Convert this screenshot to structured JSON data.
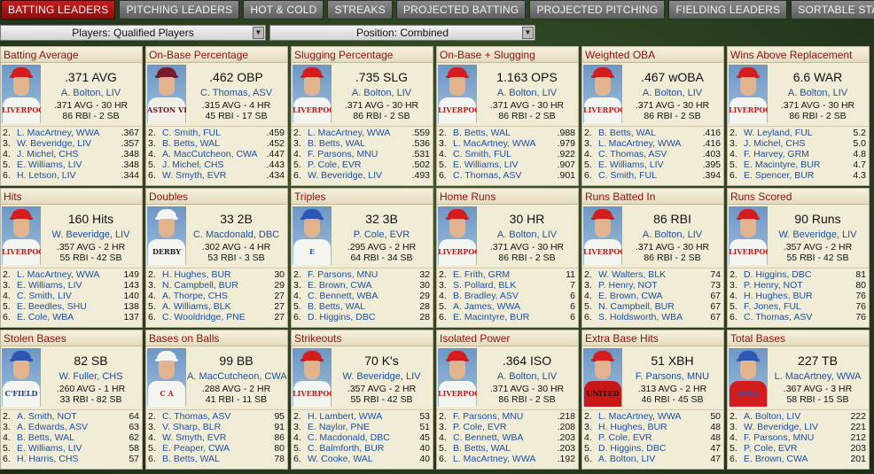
{
  "tabs": [
    {
      "label": "BATTING LEADERS",
      "active": true
    },
    {
      "label": "PITCHING LEADERS",
      "active": false
    },
    {
      "label": "HOT & COLD",
      "active": false
    },
    {
      "label": "STREAKS",
      "active": false
    },
    {
      "label": "PROJECTED BATTING",
      "active": false
    },
    {
      "label": "PROJECTED PITCHING",
      "active": false
    },
    {
      "label": "FIELDING LEADERS",
      "active": false
    },
    {
      "label": "SORTABLE STATS",
      "active": false
    }
  ],
  "filters": {
    "players": "Players: Qualified Players",
    "position": "Position: Combined",
    "dropdown_icon": "chevron-down-icon"
  },
  "colors": {
    "active_tab": "#b01515",
    "panel_bg": "#f1ecd6",
    "title_text": "#8b1010",
    "name_text": "#1f4f9a"
  },
  "panels": [
    {
      "title": "Batting Average",
      "leader": {
        "value": ".371 AVG",
        "name": "A. Bolton, LIV",
        "line1": ".371 AVG - 30 HR",
        "line2": "86 RBI - 2 SB",
        "team": "liverpool"
      },
      "ranks": [
        {
          "n": "2.",
          "name": "L. MacArtney, WWA",
          "val": ".367"
        },
        {
          "n": "3.",
          "name": "W. Beveridge, LIV",
          "val": ".357"
        },
        {
          "n": "4.",
          "name": "J. Michel, CHS",
          "val": ".348"
        },
        {
          "n": "5.",
          "name": "E. Williams, LIV",
          "val": ".348"
        },
        {
          "n": "6.",
          "name": "H. Letson, LIV",
          "val": ".344"
        }
      ]
    },
    {
      "title": "On-Base Percentage",
      "leader": {
        "value": ".462 OBP",
        "name": "C. Thomas, ASV",
        "line1": ".315 AVG - 4 HR",
        "line2": "45 RBI - 17 SB",
        "team": "astonvilla"
      },
      "ranks": [
        {
          "n": "2.",
          "name": "C. Smith, FUL",
          "val": ".459"
        },
        {
          "n": "3.",
          "name": "B. Betts, WAL",
          "val": ".452"
        },
        {
          "n": "4.",
          "name": "A. MacCutcheon, CWA",
          "val": ".447"
        },
        {
          "n": "5.",
          "name": "J. Michel, CHS",
          "val": ".443"
        },
        {
          "n": "6.",
          "name": "W. Smyth, EVR",
          "val": ".434"
        }
      ]
    },
    {
      "title": "Slugging Percentage",
      "leader": {
        "value": ".735 SLG",
        "name": "A. Bolton, LIV",
        "line1": ".371 AVG - 30 HR",
        "line2": "86 RBI - 2 SB",
        "team": "liverpool"
      },
      "ranks": [
        {
          "n": "2.",
          "name": "L. MacArtney, WWA",
          "val": ".559"
        },
        {
          "n": "3.",
          "name": "B. Betts, WAL",
          "val": ".536"
        },
        {
          "n": "4.",
          "name": "F. Parsons, MNU",
          "val": ".531"
        },
        {
          "n": "5.",
          "name": "P. Cole, EVR",
          "val": ".502"
        },
        {
          "n": "6.",
          "name": "W. Beveridge, LIV",
          "val": ".493"
        }
      ]
    },
    {
      "title": "On-Base + Slugging",
      "leader": {
        "value": "1.163 OPS",
        "name": "A. Bolton, LIV",
        "line1": ".371 AVG - 30 HR",
        "line2": "86 RBI - 2 SB",
        "team": "liverpool"
      },
      "ranks": [
        {
          "n": "2.",
          "name": "B. Betts, WAL",
          "val": ".988"
        },
        {
          "n": "3.",
          "name": "L. MacArtney, WWA",
          "val": ".979"
        },
        {
          "n": "4.",
          "name": "C. Smith, FUL",
          "val": ".922"
        },
        {
          "n": "5.",
          "name": "E. Williams, LIV",
          "val": ".907"
        },
        {
          "n": "6.",
          "name": "C. Thomas, ASV",
          "val": ".901"
        }
      ]
    },
    {
      "title": "Weighted OBA",
      "leader": {
        "value": ".467 wOBA",
        "name": "A. Bolton, LIV",
        "line1": ".371 AVG - 30 HR",
        "line2": "86 RBI - 2 SB",
        "team": "liverpool"
      },
      "ranks": [
        {
          "n": "2.",
          "name": "B. Betts, WAL",
          "val": ".416"
        },
        {
          "n": "3.",
          "name": "L. MacArtney, WWA",
          "val": ".416"
        },
        {
          "n": "4.",
          "name": "C. Thomas, ASV",
          "val": ".403"
        },
        {
          "n": "5.",
          "name": "E. Williams, LIV",
          "val": ".395"
        },
        {
          "n": "6.",
          "name": "C. Smith, FUL",
          "val": ".394"
        }
      ]
    },
    {
      "title": "Wins Above Replacement",
      "leader": {
        "value": "6.6 WAR",
        "name": "A. Bolton, LIV",
        "line1": ".371 AVG - 30 HR",
        "line2": "86 RBI - 2 SB",
        "team": "liverpool"
      },
      "ranks": [
        {
          "n": "2.",
          "name": "W. Leyland, FUL",
          "val": "5.2"
        },
        {
          "n": "3.",
          "name": "J. Michel, CHS",
          "val": "5.0"
        },
        {
          "n": "4.",
          "name": "F. Harvey, GRM",
          "val": "4.8"
        },
        {
          "n": "5.",
          "name": "E. Macintyre, BUR",
          "val": "4.7"
        },
        {
          "n": "6.",
          "name": "E. Spencer, BUR",
          "val": "4.3"
        }
      ]
    },
    {
      "title": "Hits",
      "leader": {
        "value": "160 Hits",
        "name": "W. Beveridge, LIV",
        "line1": ".357 AVG - 2 HR",
        "line2": "55 RBI - 42 SB",
        "team": "liverpool"
      },
      "ranks": [
        {
          "n": "2.",
          "name": "L. MacArtney, WWA",
          "val": "149"
        },
        {
          "n": "3.",
          "name": "E. Williams, LIV",
          "val": "143"
        },
        {
          "n": "4.",
          "name": "C. Smith, LIV",
          "val": "140"
        },
        {
          "n": "5.",
          "name": "E. Beedles, SHU",
          "val": "138"
        },
        {
          "n": "6.",
          "name": "E. Cole, WBA",
          "val": "137"
        }
      ]
    },
    {
      "title": "Doubles",
      "leader": {
        "value": "33 2B",
        "name": "C. Macdonald, DBC",
        "line1": ".302 AVG - 4 HR",
        "line2": "53 RBI - 3 SB",
        "team": "derby"
      },
      "ranks": [
        {
          "n": "2.",
          "name": "H. Hughes, BUR",
          "val": "30"
        },
        {
          "n": "3.",
          "name": "N. Campbell, BUR",
          "val": "29"
        },
        {
          "n": "4.",
          "name": "A. Thorpe, CHS",
          "val": "27"
        },
        {
          "n": "5.",
          "name": "A. Williams, BLK",
          "val": "27"
        },
        {
          "n": "6.",
          "name": "C. Wooldridge, PNE",
          "val": "27"
        }
      ]
    },
    {
      "title": "Triples",
      "leader": {
        "value": "32 3B",
        "name": "P. Cole, EVR",
        "line1": ".295 AVG - 2 HR",
        "line2": "64 RBI - 34 SB",
        "team": "everton"
      },
      "ranks": [
        {
          "n": "2.",
          "name": "F. Parsons, MNU",
          "val": "32"
        },
        {
          "n": "3.",
          "name": "E. Brown, CWA",
          "val": "30"
        },
        {
          "n": "4.",
          "name": "C. Bennett, WBA",
          "val": "29"
        },
        {
          "n": "5.",
          "name": "B. Betts, WAL",
          "val": "28"
        },
        {
          "n": "6.",
          "name": "D. Higgins, DBC",
          "val": "28"
        }
      ]
    },
    {
      "title": "Home Runs",
      "leader": {
        "value": "30 HR",
        "name": "A. Bolton, LIV",
        "line1": ".371 AVG - 30 HR",
        "line2": "86 RBI - 2 SB",
        "team": "liverpool"
      },
      "ranks": [
        {
          "n": "2.",
          "name": "E. Frith, GRM",
          "val": "11"
        },
        {
          "n": "3.",
          "name": "S. Pollard, BLK",
          "val": "7"
        },
        {
          "n": "4.",
          "name": "B. Bradley, ASV",
          "val": "6"
        },
        {
          "n": "5.",
          "name": "A. James, WWA",
          "val": "6"
        },
        {
          "n": "6.",
          "name": "E. Macintyre, BUR",
          "val": "6"
        }
      ]
    },
    {
      "title": "Runs Batted In",
      "leader": {
        "value": "86 RBI",
        "name": "A. Bolton, LIV",
        "line1": ".371 AVG - 30 HR",
        "line2": "86 RBI - 2 SB",
        "team": "liverpool"
      },
      "ranks": [
        {
          "n": "2.",
          "name": "W. Walters, BLK",
          "val": "74"
        },
        {
          "n": "3.",
          "name": "P. Henry, NOT",
          "val": "73"
        },
        {
          "n": "4.",
          "name": "E. Brown, CWA",
          "val": "67"
        },
        {
          "n": "5.",
          "name": "N. Campbell, BUR",
          "val": "67"
        },
        {
          "n": "6.",
          "name": "S. Holdsworth, WBA",
          "val": "67"
        }
      ]
    },
    {
      "title": "Runs Scored",
      "leader": {
        "value": "90 Runs",
        "name": "W. Beveridge, LIV",
        "line1": ".357 AVG - 2 HR",
        "line2": "55 RBI - 42 SB",
        "team": "liverpool"
      },
      "ranks": [
        {
          "n": "2.",
          "name": "D. Higgins, DBC",
          "val": "81"
        },
        {
          "n": "3.",
          "name": "P. Henry, NOT",
          "val": "80"
        },
        {
          "n": "4.",
          "name": "H. Hughes, BUR",
          "val": "76"
        },
        {
          "n": "5.",
          "name": "F. Jones, FUL",
          "val": "76"
        },
        {
          "n": "6.",
          "name": "C. Thomas, ASV",
          "val": "76"
        }
      ]
    },
    {
      "title": "Stolen Bases",
      "leader": {
        "value": "82 SB",
        "name": "W. Fuller, CHS",
        "line1": ".260 AVG - 1 HR",
        "line2": "33 RBI - 82 SB",
        "team": "chesterfield"
      },
      "ranks": [
        {
          "n": "2.",
          "name": "A. Smith, NOT",
          "val": "64"
        },
        {
          "n": "3.",
          "name": "A. Edwards, ASV",
          "val": "63"
        },
        {
          "n": "4.",
          "name": "B. Betts, WAL",
          "val": "62"
        },
        {
          "n": "5.",
          "name": "E. Williams, LIV",
          "val": "58"
        },
        {
          "n": "6.",
          "name": "H. Harris, CHS",
          "val": "57"
        }
      ]
    },
    {
      "title": "Bases on Balls",
      "leader": {
        "value": "99 BB",
        "name": "A. MacCutcheon, CWA",
        "line1": ".288 AVG - 2 HR",
        "line2": "41 RBI - 11 SB",
        "team": "crewe"
      },
      "ranks": [
        {
          "n": "2.",
          "name": "C. Thomas, ASV",
          "val": "95"
        },
        {
          "n": "3.",
          "name": "V. Sharp, BLR",
          "val": "91"
        },
        {
          "n": "4.",
          "name": "W. Smyth, EVR",
          "val": "86"
        },
        {
          "n": "5.",
          "name": "E. Peaper, CWA",
          "val": "80"
        },
        {
          "n": "6.",
          "name": "B. Betts, WAL",
          "val": "78"
        }
      ]
    },
    {
      "title": "Strikeouts",
      "leader": {
        "value": "70 K's",
        "name": "W. Beveridge, LIV",
        "line1": ".357 AVG - 2 HR",
        "line2": "55 RBI - 42 SB",
        "team": "liverpool"
      },
      "ranks": [
        {
          "n": "2.",
          "name": "H. Lambert, WWA",
          "val": "53"
        },
        {
          "n": "3.",
          "name": "E. Naylor, PNE",
          "val": "51"
        },
        {
          "n": "4.",
          "name": "C. Macdonald, DBC",
          "val": "45"
        },
        {
          "n": "5.",
          "name": "C. Balmforth, BUR",
          "val": "40"
        },
        {
          "n": "6.",
          "name": "W. Cooke, WAL",
          "val": "40"
        }
      ]
    },
    {
      "title": "Isolated Power",
      "leader": {
        "value": ".364 ISO",
        "name": "A. Bolton, LIV",
        "line1": ".371 AVG - 30 HR",
        "line2": "86 RBI - 2 SB",
        "team": "liverpool"
      },
      "ranks": [
        {
          "n": "2.",
          "name": "F. Parsons, MNU",
          "val": ".218"
        },
        {
          "n": "3.",
          "name": "P. Cole, EVR",
          "val": ".208"
        },
        {
          "n": "4.",
          "name": "C. Bennett, WBA",
          "val": ".203"
        },
        {
          "n": "5.",
          "name": "B. Betts, WAL",
          "val": ".203"
        },
        {
          "n": "6.",
          "name": "L. MacArtney, WWA",
          "val": ".192"
        }
      ]
    },
    {
      "title": "Extra Base Hits",
      "leader": {
        "value": "51 XBH",
        "name": "F. Parsons, MNU",
        "line1": ".313 AVG - 2 HR",
        "line2": "46 RBI - 45 SB",
        "team": "united"
      },
      "ranks": [
        {
          "n": "2.",
          "name": "L. MacArtney, WWA",
          "val": "50"
        },
        {
          "n": "3.",
          "name": "H. Hughes, BUR",
          "val": "48"
        },
        {
          "n": "4.",
          "name": "P. Cole, EVR",
          "val": "48"
        },
        {
          "n": "5.",
          "name": "D. Higgins, DBC",
          "val": "47"
        },
        {
          "n": "6.",
          "name": "A. Bolton, LIV",
          "val": "47"
        }
      ]
    },
    {
      "title": "Total Bases",
      "leader": {
        "value": "227 TB",
        "name": "L. MacArtney, WWA",
        "line1": ".367 AVG - 3 HR",
        "line2": "58 RBI - 15 SB",
        "team": "wwa"
      },
      "ranks": [
        {
          "n": "2.",
          "name": "A. Bolton, LIV",
          "val": "222"
        },
        {
          "n": "3.",
          "name": "W. Beveridge, LIV",
          "val": "221"
        },
        {
          "n": "4.",
          "name": "F. Parsons, MNU",
          "val": "212"
        },
        {
          "n": "5.",
          "name": "P. Cole, EVR",
          "val": "203"
        },
        {
          "n": "6.",
          "name": "E. Brown, CWA",
          "val": "201"
        }
      ]
    }
  ]
}
